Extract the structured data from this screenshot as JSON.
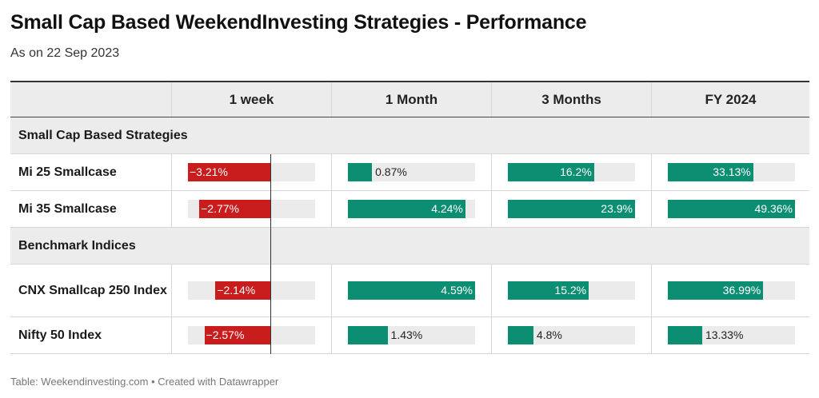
{
  "title": "Small Cap Based WeekendInvesting Strategies - Performance",
  "subtitle": "As on 22 Sep 2023",
  "colors": {
    "positive": "#0c8e73",
    "negative": "#c91c1c",
    "track": "#ebebeb",
    "header_bg": "#ececec"
  },
  "footer": "Table: Weekendinvesting.com • Created with Datawrapper",
  "chart_data": {
    "type": "table",
    "columns": [
      "",
      "1 week",
      "1 Month",
      "3 Months",
      "FY 2024"
    ],
    "column_ranges": {
      "1 week": [
        -3.21,
        2.14
      ],
      "1 Month": [
        0,
        4.59
      ],
      "3 Months": [
        0,
        23.9
      ],
      "FY 2024": [
        0,
        49.36
      ]
    },
    "groups": [
      {
        "label": "Small Cap Based Strategies",
        "rows": [
          {
            "name": "Mi 25 Smallcase",
            "values": [
              -3.21,
              0.87,
              16.2,
              33.13
            ],
            "labels": [
              "−3.21%",
              "0.87%",
              "16.2%",
              "33.13%"
            ]
          },
          {
            "name": "Mi 35 Smallcase",
            "values": [
              -2.77,
              4.24,
              23.9,
              49.36
            ],
            "labels": [
              "−2.77%",
              "4.24%",
              "23.9%",
              "49.36%"
            ]
          }
        ]
      },
      {
        "label": "Benchmark Indices",
        "rows": [
          {
            "name": "CNX Smallcap 250 Index",
            "values": [
              -2.14,
              4.59,
              15.2,
              36.99
            ],
            "labels": [
              "−2.14%",
              "4.59%",
              "15.2%",
              "36.99%"
            ]
          },
          {
            "name": "Nifty 50 Index",
            "values": [
              -2.57,
              1.43,
              4.8,
              13.33
            ],
            "labels": [
              "−2.57%",
              "1.43%",
              "4.8%",
              "13.33%"
            ]
          }
        ]
      }
    ]
  }
}
